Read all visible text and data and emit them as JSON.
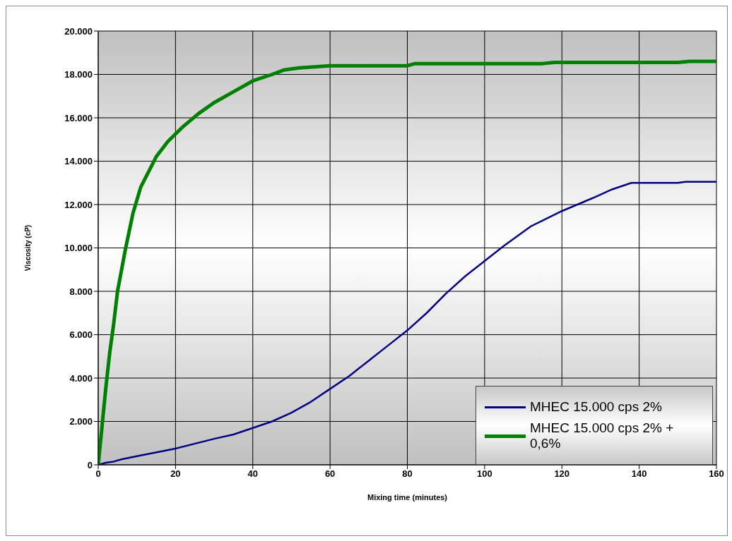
{
  "chart_data": {
    "type": "line",
    "xlabel": "Mixing time (minutes)",
    "ylabel": "Viscosity (cP)",
    "xlim": [
      0,
      160
    ],
    "xticks": [
      0,
      20,
      40,
      60,
      80,
      100,
      120,
      140,
      160
    ],
    "ylim": [
      0,
      20000
    ],
    "yticks": [
      {
        "value": 0,
        "label": "0"
      },
      {
        "value": 2000,
        "label": "2.000"
      },
      {
        "value": 4000,
        "label": "4.000"
      },
      {
        "value": 6000,
        "label": "6.000"
      },
      {
        "value": 8000,
        "label": "8.000"
      },
      {
        "value": 10000,
        "label": "10.000"
      },
      {
        "value": 12000,
        "label": "12.000"
      },
      {
        "value": 14000,
        "label": "14.000"
      },
      {
        "value": 16000,
        "label": "16.000"
      },
      {
        "value": 18000,
        "label": "18.000"
      },
      {
        "value": 20000,
        "label": "20.000"
      }
    ],
    "grid": true,
    "legend": "bottom right",
    "marker": "none",
    "line_style": "solid",
    "series": [
      {
        "name": "MHEC 15.000 cps 2%",
        "color": "#000080",
        "x": [
          0,
          2,
          4,
          6,
          10,
          20,
          30,
          35,
          40,
          45,
          50,
          55,
          60,
          65,
          70,
          75,
          80,
          85,
          90,
          95,
          100,
          105,
          112,
          120,
          128,
          133,
          138,
          150,
          152,
          160
        ],
        "values": [
          0,
          100,
          150,
          250,
          400,
          750,
          1200,
          1400,
          1700,
          2000,
          2400,
          2900,
          3500,
          4100,
          4800,
          5500,
          6200,
          7000,
          7900,
          8700,
          9400,
          10100,
          11000,
          11700,
          12300,
          12700,
          13000,
          13000,
          13050,
          13050
        ]
      },
      {
        "name": "MHEC 15.000 cps 2% + 0,6%",
        "color": "#008000",
        "x": [
          0,
          1,
          2,
          3,
          4,
          5,
          7,
          9,
          11,
          13,
          15,
          18,
          22,
          26,
          30,
          35,
          40,
          45,
          48,
          52,
          60,
          80,
          82,
          115,
          118,
          150,
          153,
          160
        ],
        "values": [
          0,
          1800,
          3600,
          5200,
          6500,
          8000,
          9900,
          11600,
          12800,
          13500,
          14200,
          14900,
          15600,
          16200,
          16700,
          17200,
          17700,
          18000,
          18200,
          18300,
          18400,
          18400,
          18500,
          18500,
          18550,
          18550,
          18600,
          18600
        ]
      }
    ]
  }
}
